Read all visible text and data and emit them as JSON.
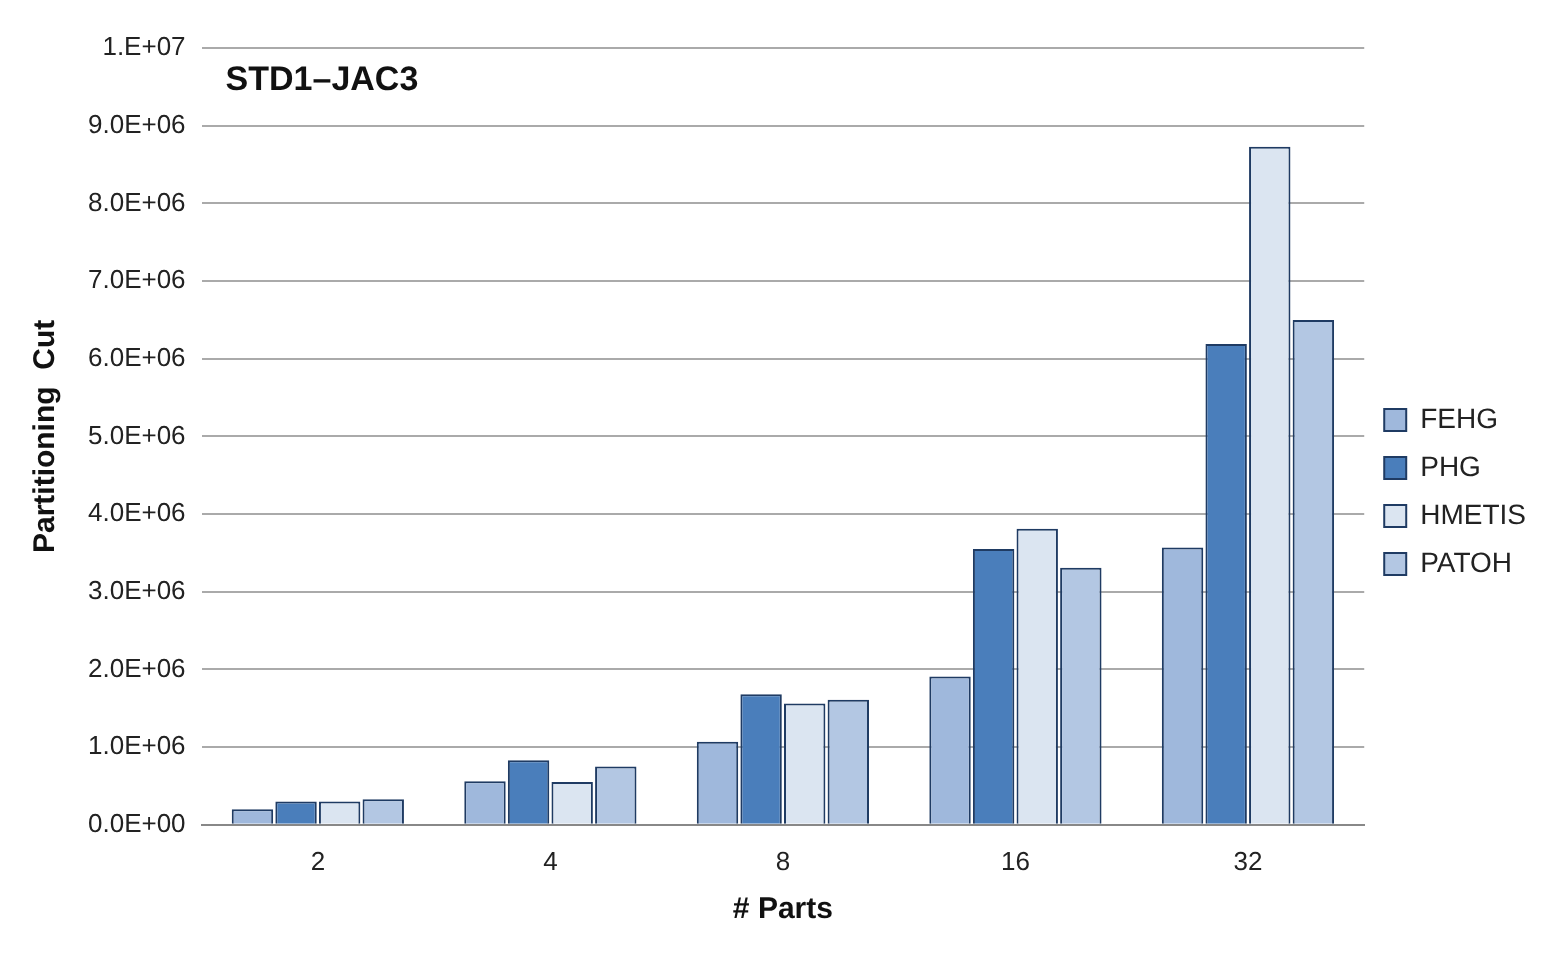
{
  "chart_data": {
    "type": "bar",
    "title": "STD1–JAC3",
    "xlabel": "# Parts",
    "ylabel": "Partitioning  Cut",
    "categories": [
      "2",
      "4",
      "8",
      "16",
      "32"
    ],
    "series": [
      {
        "name": "FEHG",
        "color": "#9fb8dc",
        "values": [
          200000,
          560000,
          1070000,
          1910000,
          3570000
        ]
      },
      {
        "name": "PHG",
        "color": "#4a7ebb",
        "values": [
          300000,
          830000,
          1680000,
          3550000,
          6190000
        ]
      },
      {
        "name": "HMETIS",
        "color": "#dbe5f1",
        "values": [
          300000,
          550000,
          1560000,
          3810000,
          8730000
        ]
      },
      {
        "name": "PATOH",
        "color": "#b3c7e3",
        "values": [
          330000,
          750000,
          1610000,
          3310000,
          6500000
        ]
      }
    ],
    "ylim": [
      0,
      10000000
    ],
    "yticks": [
      {
        "value": 0,
        "label": "0.0E+00"
      },
      {
        "value": 1000000,
        "label": "1.0E+06"
      },
      {
        "value": 2000000,
        "label": "2.0E+06"
      },
      {
        "value": 3000000,
        "label": "3.0E+06"
      },
      {
        "value": 4000000,
        "label": "4.0E+06"
      },
      {
        "value": 5000000,
        "label": "5.0E+06"
      },
      {
        "value": 6000000,
        "label": "6.0E+06"
      },
      {
        "value": 7000000,
        "label": "7.0E+06"
      },
      {
        "value": 8000000,
        "label": "8.0E+06"
      },
      {
        "value": 9000000,
        "label": "9.0E+06"
      },
      {
        "value": 10000000,
        "label": "1.E+07"
      }
    ],
    "grid": "y",
    "legend": "right"
  }
}
